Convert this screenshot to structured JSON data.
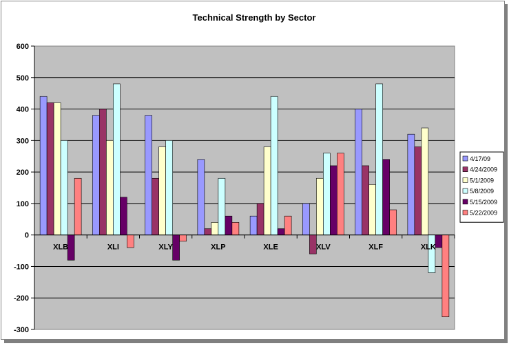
{
  "chart_data": {
    "type": "bar",
    "title": "Technical Strength by Sector",
    "xlabel": "",
    "ylabel": "",
    "ylim": [
      -300,
      600
    ],
    "yticks": [
      600,
      500,
      400,
      300,
      200,
      100,
      0,
      -100,
      -200,
      -300
    ],
    "grid": true,
    "legend_position": "right",
    "categories": [
      "XLB",
      "XLI",
      "XLY",
      "XLP",
      "XLE",
      "XLV",
      "XLF",
      "XLK"
    ],
    "series": [
      {
        "name": "4/17/09",
        "color": "#9999ff",
        "values": [
          440,
          380,
          380,
          240,
          60,
          100,
          400,
          320
        ]
      },
      {
        "name": "4/24/2009",
        "color": "#993366",
        "values": [
          420,
          400,
          180,
          20,
          100,
          -60,
          220,
          280
        ]
      },
      {
        "name": "5/1/2009",
        "color": "#ffffcc",
        "values": [
          420,
          300,
          280,
          40,
          280,
          180,
          160,
          340
        ]
      },
      {
        "name": "5/8/2009",
        "color": "#ccffff",
        "values": [
          300,
          480,
          300,
          180,
          440,
          260,
          480,
          -120
        ]
      },
      {
        "name": "5/15/2009",
        "color": "#660066",
        "values": [
          -80,
          120,
          -80,
          60,
          20,
          220,
          240,
          -40
        ]
      },
      {
        "name": "5/22/2009",
        "color": "#ff8080",
        "values": [
          180,
          -40,
          -20,
          40,
          60,
          260,
          80,
          -260
        ]
      }
    ],
    "colors": {
      "plot_background": "#c0c0c0",
      "gridline": "#000000",
      "bar_outline": "#000000",
      "border": "#808080"
    }
  }
}
